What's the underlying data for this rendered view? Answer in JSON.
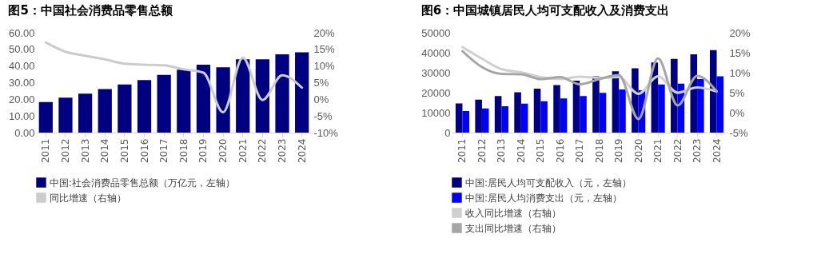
{
  "chart_data": [
    {
      "type": "bar",
      "title": "图5：中国社会消费品零售总额",
      "categories": [
        "2011",
        "2012",
        "2013",
        "2014",
        "2015",
        "2016",
        "2017",
        "2018",
        "2019",
        "2020",
        "2021",
        "2022",
        "2023",
        "2024"
      ],
      "series": [
        {
          "name": "中国:社会消费品零售总额（万亿元，左轴）",
          "color": "#000080",
          "values": [
            18.4,
            21.0,
            23.4,
            26.2,
            28.9,
            31.6,
            34.7,
            37.8,
            40.8,
            39.2,
            44.1,
            44.0,
            47.1,
            48.3
          ]
        },
        {
          "name": "同比增速（右轴）",
          "type": "line",
          "axis": "y2",
          "color": "#cccccc",
          "values": [
            17.1,
            14.3,
            13.1,
            12.0,
            10.7,
            10.4,
            10.2,
            9.0,
            8.0,
            -3.9,
            12.5,
            -0.2,
            7.2,
            3.5
          ]
        }
      ],
      "ylim": [
        0,
        60
      ],
      "yticks": [
        {
          "value": 0,
          "label": "0.00"
        },
        {
          "value": 10,
          "label": "10.00"
        },
        {
          "value": 20,
          "label": "20.00"
        },
        {
          "value": 30,
          "label": "30.00"
        },
        {
          "value": 40,
          "label": "40.00"
        },
        {
          "value": 50,
          "label": "50.00"
        },
        {
          "value": 60,
          "label": "60.00"
        }
      ],
      "y2lim": [
        -10,
        20
      ],
      "y2ticks": [
        {
          "value": -10,
          "label": "-10%"
        },
        {
          "value": -5,
          "label": "-5%"
        },
        {
          "value": 0,
          "label": "0%"
        },
        {
          "value": 5,
          "label": "5%"
        },
        {
          "value": 10,
          "label": "10%"
        },
        {
          "value": 15,
          "label": "15%"
        },
        {
          "value": 20,
          "label": "20%"
        }
      ],
      "legend": "bottom"
    },
    {
      "type": "bar",
      "title": "图6：中国城镇居民人均可支配收入及消费支出",
      "categories": [
        "2011",
        "2012",
        "2013",
        "2014",
        "2015",
        "2016",
        "2017",
        "2018",
        "2019",
        "2020",
        "2021",
        "2022",
        "2023",
        "2024"
      ],
      "series": [
        {
          "name": "中国:居民人均可支配收入（元，左轴）",
          "color": "#000080",
          "values": [
            14600,
            16500,
            18300,
            20200,
            22000,
            23800,
            26000,
            28200,
            30700,
            32200,
            35100,
            36900,
            39200,
            41300
          ]
        },
        {
          "name": "中国:居民人均消费支出（元，左轴）",
          "color": "#0000ff",
          "values": [
            10800,
            12100,
            13200,
            14500,
            15700,
            17100,
            18300,
            19900,
            21600,
            21200,
            24100,
            24500,
            26800,
            28200
          ]
        },
        {
          "name": "收入同比增速（右轴）",
          "type": "line",
          "axis": "y2",
          "color": "#d0d0d0",
          "values": [
            16.4,
            13.5,
            10.9,
            10.1,
            8.9,
            8.4,
            9.0,
            8.7,
            8.9,
            4.7,
            9.1,
            5.0,
            6.3,
            5.3
          ]
        },
        {
          "name": "支出同比增速（右轴）",
          "type": "line",
          "axis": "y2",
          "color": "#a6a6a6",
          "values": [
            15.4,
            11.4,
            9.7,
            9.6,
            8.4,
            8.9,
            7.1,
            8.4,
            9.4,
            -1.6,
            13.6,
            1.8,
            9.2,
            5.3
          ]
        }
      ],
      "ylim": [
        0,
        50000
      ],
      "yticks": [
        0,
        10000,
        20000,
        30000,
        40000,
        50000
      ],
      "y2lim": [
        -5,
        20
      ],
      "y2ticks": [
        {
          "value": -5,
          "label": "-5%"
        },
        {
          "value": 0,
          "label": "0%"
        },
        {
          "value": 5,
          "label": "5%"
        },
        {
          "value": 10,
          "label": "10%"
        },
        {
          "value": 15,
          "label": "15%"
        },
        {
          "value": 20,
          "label": "20%"
        }
      ],
      "legend": "bottom"
    }
  ]
}
